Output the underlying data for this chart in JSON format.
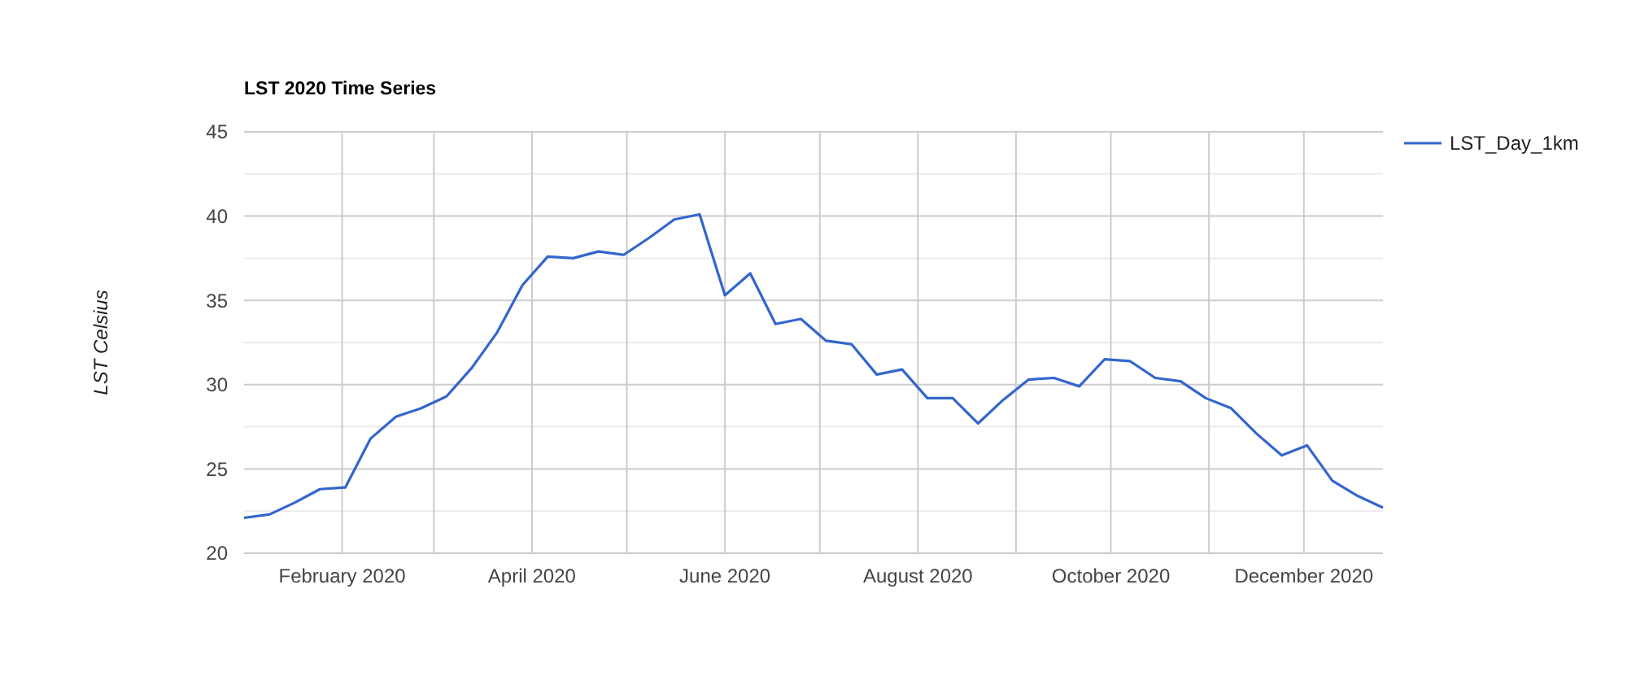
{
  "chart_data": {
    "type": "line",
    "title": "LST 2020 Time Series",
    "ylabel": "LST Celsius",
    "x": [
      "2020-01-01",
      "2020-01-09",
      "2020-01-17",
      "2020-01-25",
      "2020-02-02",
      "2020-02-10",
      "2020-02-18",
      "2020-02-26",
      "2020-03-05",
      "2020-03-13",
      "2020-03-21",
      "2020-03-29",
      "2020-04-06",
      "2020-04-14",
      "2020-04-22",
      "2020-04-30",
      "2020-05-08",
      "2020-05-16",
      "2020-05-24",
      "2020-06-01",
      "2020-06-09",
      "2020-06-17",
      "2020-06-25",
      "2020-07-03",
      "2020-07-11",
      "2020-07-19",
      "2020-07-27",
      "2020-08-04",
      "2020-08-12",
      "2020-08-20",
      "2020-08-28",
      "2020-09-05",
      "2020-09-13",
      "2020-09-21",
      "2020-09-29",
      "2020-10-07",
      "2020-10-15",
      "2020-10-23",
      "2020-10-31",
      "2020-11-08",
      "2020-11-16",
      "2020-11-24",
      "2020-12-02",
      "2020-12-10",
      "2020-12-18",
      "2020-12-26"
    ],
    "series": [
      {
        "name": "LST_Day_1km",
        "color": "#3366cc",
        "values": [
          22.1,
          22.3,
          23.0,
          23.8,
          23.9,
          26.8,
          28.1,
          28.6,
          29.3,
          31.0,
          33.1,
          35.9,
          37.6,
          37.5,
          37.9,
          37.7,
          38.7,
          39.8,
          40.1,
          35.3,
          36.6,
          33.6,
          33.9,
          32.6,
          32.4,
          30.6,
          30.9,
          29.2,
          29.2,
          27.7,
          29.1,
          30.3,
          30.4,
          29.9,
          31.5,
          31.4,
          30.4,
          30.2,
          29.2,
          28.6,
          27.1,
          25.8,
          26.4,
          24.3,
          23.4,
          22.7
        ]
      }
    ],
    "xlim": [
      "2020-01-01",
      "2020-12-26"
    ],
    "xticks": [
      {
        "value": "2020-02-01",
        "label": "February 2020"
      },
      {
        "value": "2020-03-01",
        "label": null
      },
      {
        "value": "2020-04-01",
        "label": "April 2020"
      },
      {
        "value": "2020-05-01",
        "label": null
      },
      {
        "value": "2020-06-01",
        "label": "June 2020"
      },
      {
        "value": "2020-07-01",
        "label": null
      },
      {
        "value": "2020-08-01",
        "label": "August 2020"
      },
      {
        "value": "2020-09-01",
        "label": null
      },
      {
        "value": "2020-10-01",
        "label": "October 2020"
      },
      {
        "value": "2020-11-01",
        "label": null
      },
      {
        "value": "2020-12-01",
        "label": "December 2020"
      }
    ],
    "ylim": [
      20,
      45
    ],
    "yticks": [
      20,
      {
        "value": 22.5,
        "label": null
      },
      25,
      {
        "value": 27.5,
        "label": null
      },
      30,
      {
        "value": 32.5,
        "label": null
      },
      35,
      {
        "value": 37.5,
        "label": null
      },
      40,
      {
        "value": 42.5,
        "label": null
      },
      45
    ],
    "grid": true,
    "legend": "right",
    "marker": "none",
    "line_style": "solid"
  }
}
